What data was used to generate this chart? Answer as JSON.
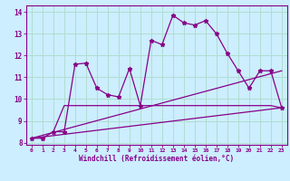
{
  "xlabel": "Windchill (Refroidissement éolien,°C)",
  "bg_color": "#cceeff",
  "grid_color": "#b0ddd0",
  "line_color": "#880088",
  "x_values": [
    0,
    1,
    2,
    3,
    4,
    5,
    6,
    7,
    8,
    9,
    10,
    11,
    12,
    13,
    14,
    15,
    16,
    17,
    18,
    19,
    20,
    21,
    22,
    23
  ],
  "main_line": [
    8.2,
    8.2,
    8.5,
    8.5,
    11.6,
    11.65,
    10.5,
    10.2,
    10.1,
    11.4,
    9.7,
    12.7,
    12.5,
    13.85,
    13.5,
    13.4,
    13.6,
    13.0,
    12.1,
    11.3,
    10.5,
    11.3,
    11.3,
    9.6
  ],
  "line2_x": [
    2,
    3,
    4,
    5,
    6,
    7,
    8,
    9,
    10,
    11,
    12,
    13,
    14,
    15,
    16,
    17,
    18,
    19,
    20,
    21,
    22,
    23
  ],
  "line2_y": [
    8.5,
    9.7,
    9.7,
    9.7,
    9.7,
    9.7,
    9.7,
    9.7,
    9.7,
    9.7,
    9.7,
    9.7,
    9.7,
    9.7,
    9.7,
    9.7,
    9.7,
    9.7,
    9.7,
    9.7,
    9.7,
    9.6
  ],
  "line3_x": [
    0,
    23
  ],
  "line3_y": [
    8.2,
    11.3
  ],
  "line4_x": [
    0,
    23
  ],
  "line4_y": [
    8.2,
    9.6
  ],
  "ylim": [
    7.9,
    14.3
  ],
  "xlim": [
    -0.5,
    23.5
  ],
  "yticks": [
    8,
    9,
    10,
    11,
    12,
    13,
    14
  ],
  "xticks": [
    0,
    1,
    2,
    3,
    4,
    5,
    6,
    7,
    8,
    9,
    10,
    11,
    12,
    13,
    14,
    15,
    16,
    17,
    18,
    19,
    20,
    21,
    22,
    23
  ]
}
